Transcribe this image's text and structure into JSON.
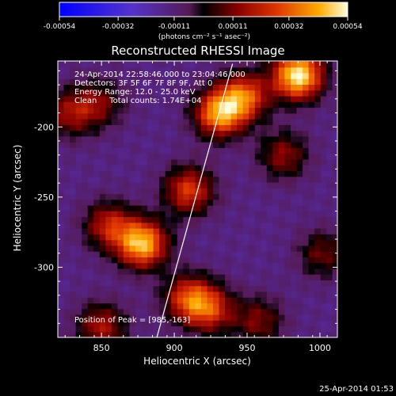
{
  "chart_data": {
    "type": "heatmap",
    "title": "Reconstructed RHESSI Image",
    "xlabel": "Heliocentric X (arcsec)",
    "ylabel": "Heliocentric Y (arcsec)",
    "xlim": [
      820,
      1012
    ],
    "ylim": [
      -350,
      -153
    ],
    "x_ticks": [
      850,
      900,
      950,
      1000
    ],
    "y_ticks": [
      -200,
      -250,
      -300
    ],
    "header_lines": [
      "24-Apr-2014 22:58:46.000 to 23:04:46.000",
      "Detectors: 3F 5F 6F 7F 8F 9F, Att 0",
      "Energy Range: 12.0 - 25.0 keV",
      "Clean     Total counts: 1.74E+04"
    ],
    "peak_label": "Position of Peak = [985,-163]",
    "colorbar": {
      "ticks": [
        "-0.00054",
        "-0.00032",
        "-0.00011",
        "0.00011",
        "0.00032",
        "0.00054"
      ],
      "tick_values": [
        -0.00054,
        -0.00032,
        -0.00011,
        0.00011,
        0.00032,
        0.00054
      ],
      "label": "(photons cm⁻² s⁻¹ asec⁻²)",
      "range": [
        -0.00054,
        0.00054
      ]
    },
    "limb_line": [
      [
        888,
        -350
      ],
      [
        940,
        -155
      ]
    ],
    "sources": [
      {
        "x": 985,
        "y": -163,
        "value": 0.00054
      },
      {
        "x": 878,
        "y": -283,
        "value": 0.00046
      },
      {
        "x": 931,
        "y": -190,
        "value": 0.0004
      },
      {
        "x": 948,
        "y": -178,
        "value": 0.0003
      },
      {
        "x": 910,
        "y": -245,
        "value": 0.00026
      },
      {
        "x": 855,
        "y": -270,
        "value": 0.0002
      },
      {
        "x": 910,
        "y": -322,
        "value": 0.00026
      },
      {
        "x": 925,
        "y": -330,
        "value": 0.0002
      },
      {
        "x": 850,
        "y": -342,
        "value": 0.00017
      },
      {
        "x": 828,
        "y": -190,
        "value": 0.00013
      },
      {
        "x": 848,
        "y": -183,
        "value": 0.0001
      },
      {
        "x": 975,
        "y": -220,
        "value": 0.00013
      },
      {
        "x": 1002,
        "y": -290,
        "value": 9e-05
      },
      {
        "x": 958,
        "y": -338,
        "value": 0.00011
      }
    ]
  },
  "footer": {
    "date": "25-Apr-2014 01:53"
  },
  "colors": {
    "background": "#000000",
    "foreground": "#ffffff"
  }
}
